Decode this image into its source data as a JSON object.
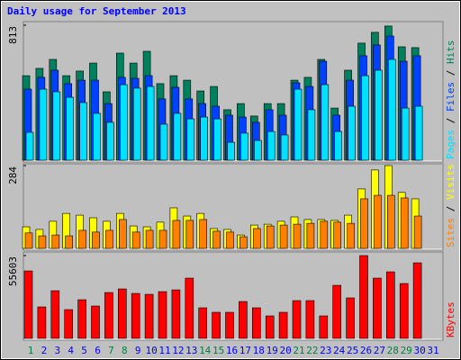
{
  "chart_data": [
    {
      "type": "bar",
      "title": "Daily usage for September 2013",
      "categories": [
        "1",
        "2",
        "3",
        "4",
        "5",
        "6",
        "7",
        "8",
        "9",
        "10",
        "11",
        "12",
        "13",
        "14",
        "15",
        "16",
        "17",
        "18",
        "19",
        "20",
        "21",
        "22",
        "23",
        "24",
        "25",
        "26",
        "27",
        "28",
        "29",
        "30",
        "31"
      ],
      "category_colors": [
        "#008040",
        "#0000ff",
        "#0000ff",
        "#0000ff",
        "#0000ff",
        "#0000ff",
        "#008040",
        "#008040",
        "#0000ff",
        "#0000ff",
        "#0000ff",
        "#0000ff",
        "#0000ff",
        "#008040",
        "#008040",
        "#0000ff",
        "#0000ff",
        "#0000ff",
        "#0000ff",
        "#0000ff",
        "#008040",
        "#008040",
        "#0000ff",
        "#0000ff",
        "#0000ff",
        "#0000ff",
        "#0000ff",
        "#008040",
        "#008040",
        "#0000ff",
        "#0000ff"
      ],
      "ylim": [
        0,
        813
      ],
      "yticks": [
        813
      ],
      "legend_separator": "/",
      "series": [
        {
          "name": "Hits",
          "color": "#00805c",
          "values": [
            509,
            553,
            607,
            509,
            537,
            585,
            412,
            645,
            585,
            656,
            461,
            509,
            482,
            417,
            444,
            304,
            341,
            266,
            341,
            341,
            482,
            499,
            607,
            314,
            542,
            705,
            770,
            808,
            683,
            678,
            null
          ]
        },
        {
          "name": "Files",
          "color": "#0040ff",
          "values": [
            428,
            499,
            542,
            461,
            482,
            482,
            341,
            499,
            493,
            509,
            369,
            439,
            369,
            341,
            325,
            271,
            260,
            228,
            304,
            271,
            466,
            444,
            596,
            271,
            482,
            629,
            694,
            748,
            596,
            629,
            null
          ]
        },
        {
          "name": "Pages",
          "color": "#00e0ff",
          "values": [
            168,
            428,
            412,
            379,
            347,
            282,
            228,
            455,
            434,
            444,
            217,
            282,
            249,
            260,
            249,
            108,
            163,
            119,
            173,
            152,
            428,
            304,
            455,
            173,
            325,
            509,
            542,
            607,
            314,
            325,
            null
          ]
        }
      ]
    },
    {
      "type": "bar",
      "ylim": [
        0,
        284
      ],
      "yticks": [
        284
      ],
      "legend_separator": "/",
      "series": [
        {
          "name": "Visits",
          "color": "#ffff00",
          "values": [
            74,
            65,
            93,
            120,
            114,
            105,
            93,
            120,
            77,
            74,
            90,
            139,
            111,
            120,
            68,
            65,
            46,
            80,
            83,
            93,
            108,
            99,
            99,
            96,
            114,
            204,
            269,
            284,
            192,
            170,
            null
          ]
        },
        {
          "name": "Sites",
          "color": "#ff8000",
          "values": [
            53,
            43,
            46,
            43,
            62,
            56,
            62,
            99,
            56,
            62,
            62,
            96,
            96,
            99,
            59,
            56,
            40,
            68,
            77,
            80,
            83,
            86,
            93,
            90,
            86,
            170,
            182,
            182,
            173,
            111,
            null
          ]
        }
      ]
    },
    {
      "type": "bar",
      "ylim": [
        0,
        55603
      ],
      "yticks": [
        55603
      ],
      "series": [
        {
          "name": "KBytes",
          "color": "#ff0000",
          "values": [
            45300,
            21140,
            32010,
            19330,
            25970,
            21740,
            30800,
            33220,
            30200,
            29600,
            31400,
            32600,
            40470,
            20540,
            17520,
            17520,
            24760,
            20540,
            15100,
            17520,
            25370,
            25370,
            15100,
            35640,
            27180,
            55603,
            40470,
            44700,
            36840,
            50740,
            null
          ]
        }
      ]
    }
  ]
}
